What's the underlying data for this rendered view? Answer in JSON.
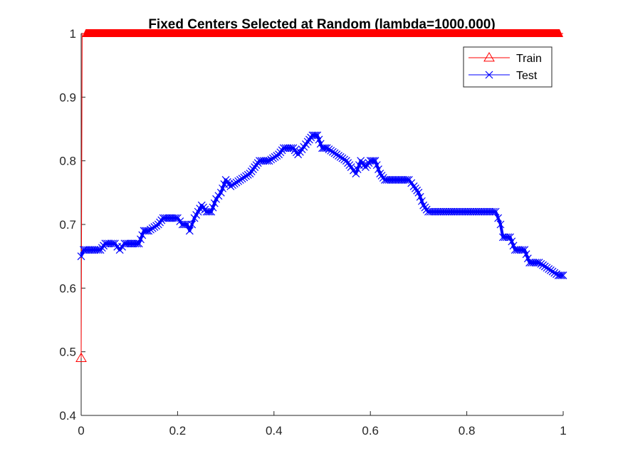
{
  "chart_data": {
    "type": "line",
    "title": "Fixed Centers Selected at Random (lambda=1000.000)",
    "xlabel": "",
    "ylabel": "",
    "xlim": [
      0,
      1
    ],
    "ylim": [
      0.4,
      1
    ],
    "xticks": [
      0,
      0.2,
      0.4,
      0.6,
      0.8,
      1
    ],
    "yticks": [
      0.4,
      0.5,
      0.6,
      0.7,
      0.8,
      0.9,
      1
    ],
    "xtick_labels": [
      "0",
      "0.2",
      "0.4",
      "0.6",
      "0.8",
      "1"
    ],
    "ytick_labels": [
      "0.4",
      "0.5",
      "0.6",
      "0.7",
      "0.8",
      "0.9",
      "1"
    ],
    "grid": false,
    "legend_position": "top-right",
    "series": [
      {
        "name": "Train",
        "color": "#ff0000",
        "marker": "triangle",
        "x": [
          0.0,
          0.002,
          1.0
        ],
        "y": [
          0.49,
          1.0,
          1.0
        ]
      },
      {
        "name": "Test",
        "color": "#0000ff",
        "marker": "x",
        "x": [
          0.0,
          0.005,
          0.02,
          0.04,
          0.05,
          0.07,
          0.08,
          0.09,
          0.12,
          0.13,
          0.14,
          0.16,
          0.17,
          0.2,
          0.21,
          0.22,
          0.225,
          0.235,
          0.25,
          0.26,
          0.27,
          0.28,
          0.29,
          0.3,
          0.31,
          0.33,
          0.35,
          0.36,
          0.37,
          0.39,
          0.41,
          0.42,
          0.44,
          0.45,
          0.47,
          0.48,
          0.49,
          0.5,
          0.51,
          0.53,
          0.55,
          0.56,
          0.57,
          0.58,
          0.59,
          0.6,
          0.61,
          0.62,
          0.63,
          0.68,
          0.69,
          0.7,
          0.71,
          0.72,
          0.74,
          0.86,
          0.865,
          0.87,
          0.875,
          0.89,
          0.9,
          0.92,
          0.93,
          0.95,
          0.97,
          0.99,
          1.0
        ],
        "y": [
          0.65,
          0.66,
          0.66,
          0.66,
          0.67,
          0.67,
          0.66,
          0.67,
          0.67,
          0.69,
          0.69,
          0.7,
          0.71,
          0.71,
          0.7,
          0.7,
          0.69,
          0.71,
          0.73,
          0.72,
          0.72,
          0.74,
          0.75,
          0.77,
          0.76,
          0.77,
          0.78,
          0.79,
          0.8,
          0.8,
          0.81,
          0.82,
          0.82,
          0.81,
          0.83,
          0.84,
          0.84,
          0.82,
          0.82,
          0.81,
          0.8,
          0.79,
          0.78,
          0.8,
          0.79,
          0.8,
          0.8,
          0.78,
          0.77,
          0.77,
          0.76,
          0.75,
          0.73,
          0.72,
          0.72,
          0.72,
          0.71,
          0.7,
          0.68,
          0.68,
          0.66,
          0.66,
          0.64,
          0.64,
          0.63,
          0.62,
          0.62
        ]
      }
    ]
  }
}
